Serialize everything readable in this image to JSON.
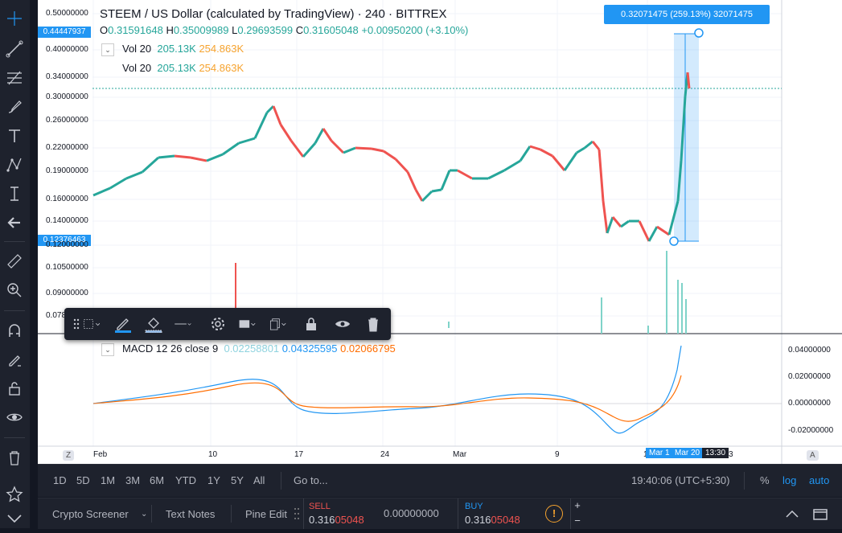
{
  "header": {
    "symbol": "STEEM / US Dollar (calculated by TradingView) · 240 · BITTREX",
    "ohlc": {
      "o_label": "O",
      "o": "0.31591648",
      "h_label": "H",
      "h": "0.35009989",
      "l_label": "L",
      "l": "0.29693599",
      "c_label": "C",
      "c": "0.31605048",
      "change": "+0.00950200 (+3.10%)"
    }
  },
  "indicators": {
    "vol1": {
      "name": "Vol 20",
      "v1": "205.13K",
      "v2": "254.863K"
    },
    "vol2": {
      "name": "Vol 20",
      "v1": "205.13K",
      "v2": "254.863K"
    },
    "macd": {
      "name": "MACD 12 26 close 9",
      "v1": "0.02258801",
      "v2": "0.04325595",
      "v3": "0.02066795"
    }
  },
  "measure": {
    "label": "0.32071475 (259.13%) 32071475"
  },
  "price_axis": {
    "ticks": [
      "0.50000000",
      "0.40000000",
      "0.34000000",
      "0.30000000",
      "0.26000000",
      "0.22000000",
      "0.19000000",
      "0.16000000",
      "0.14000000",
      "0.12000000",
      "0.10500000",
      "0.09000000",
      "0.078"
    ],
    "tags": {
      "top": "0.44447937",
      "bottom": "0.12376463"
    }
  },
  "macd_axis": {
    "ticks": [
      "0.04000000",
      "0.02000000",
      "0.00000000",
      "-0.02000000"
    ]
  },
  "time_axis": {
    "labels": [
      "Feb",
      "10",
      "17",
      "24",
      "Mar",
      "9",
      "1",
      "Mar 1",
      "Mar 20",
      "13:30",
      "3"
    ],
    "z": "Z",
    "a": "A"
  },
  "bottom_bar": {
    "ranges": [
      "1D",
      "5D",
      "1M",
      "3M",
      "6M",
      "YTD",
      "1Y",
      "5Y",
      "All"
    ],
    "goto": "Go to...",
    "clock": "19:40:06 (UTC+5:30)",
    "percent": "%",
    "log": "log",
    "auto": "auto"
  },
  "footer": {
    "crypto_screener": "Crypto Screener",
    "text_notes": "Text Notes",
    "pine_editor": "Pine Edit",
    "sell_label": "SELL",
    "sell_price_a": "0.316",
    "sell_price_b": "05048",
    "spread": "0.00000000",
    "buy_label": "BUY",
    "buy_price_a": "0.316",
    "buy_price_b": "05048",
    "plus": "+",
    "minus": "−"
  },
  "colors": {
    "up": "#26a69a",
    "down": "#ef5350",
    "accent": "#2196f3",
    "macd": "#2196f3",
    "signal": "#ff6d00"
  }
}
